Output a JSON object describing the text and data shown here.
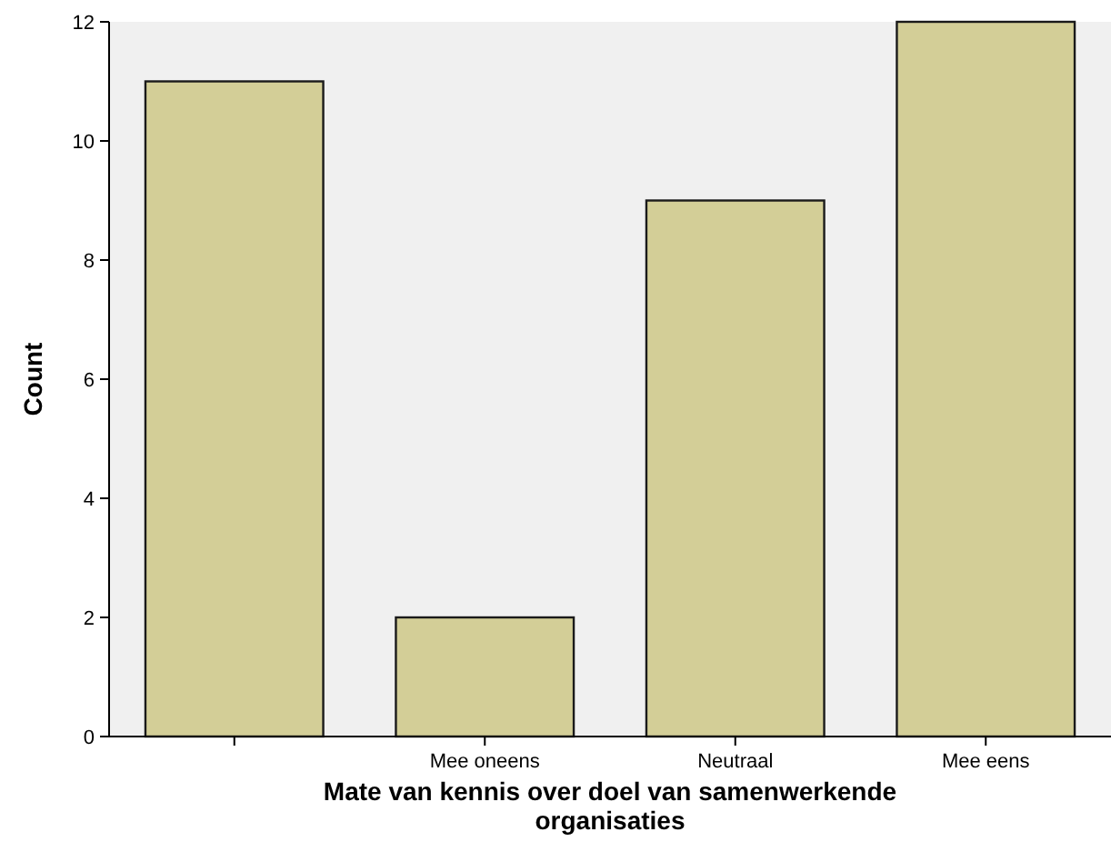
{
  "chart_data": {
    "type": "bar",
    "xlabel": "Mate van kennis over doel van samenwerkende organisaties",
    "ylabel": "Count",
    "categories": [
      null,
      "Mee oneens",
      "Neutraal",
      "Mee eens"
    ],
    "values": [
      11,
      2,
      9,
      12
    ],
    "color": "#d3ce97",
    "ylim": [
      0,
      12
    ],
    "yticks": [
      0,
      2,
      4,
      6,
      8,
      10,
      12
    ],
    "grid": false
  }
}
